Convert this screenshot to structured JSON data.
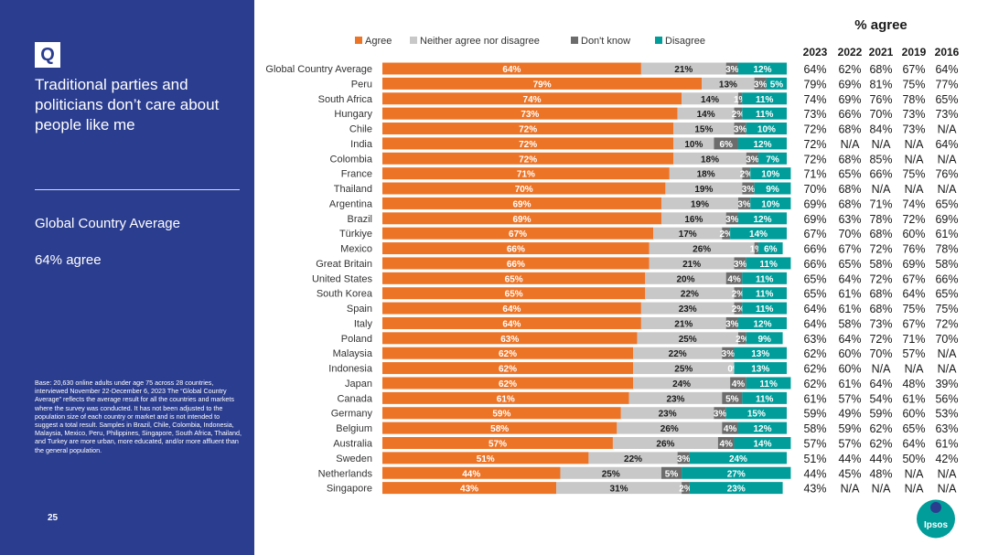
{
  "sidebar": {
    "badge": "Q",
    "question": "Traditional parties and politicians don’t care about people like me",
    "average_label": "Global Country Average",
    "average_value": "64% agree",
    "base_note": "Base: 20,630 online adults under age 75 across 28 countries, interviewed November 22-December 6, 2023\nThe “Global Country Average” reflects the average result for all the countries and markets where the survey was conducted. It has not been adjusted to the population size of each country or market and is not intended to suggest a total result. Samples in Brazil, Chile, Colombia, Indonesia, Malaysia, Mexico, Peru, Philippines, Singapore, South Africa, Thailand, and Turkey are more urban, more educated, and/or more affluent than the general population.",
    "page_number": "25"
  },
  "logo": {
    "text": "Ipsos",
    "color": "#009d9a"
  },
  "colors": {
    "agree": "#ec7427",
    "neither": "#c8c8c8",
    "dontknow": "#6c6c6c",
    "disagree": "#009d9a",
    "sidebar": "#2b3d8f"
  },
  "chart_data": {
    "type": "bar",
    "orientation": "horizontal",
    "stacked": true,
    "xlim": [
      0,
      100
    ],
    "legend_position": "top",
    "categories": [
      "Global Country Average",
      "Peru",
      "South Africa",
      "Hungary",
      "Chile",
      "India",
      "Colombia",
      "France",
      "Thailand",
      "Argentina",
      "Brazil",
      "Türkiye",
      "Mexico",
      "Great Britain",
      "United States",
      "South Korea",
      "Spain",
      "Italy",
      "Poland",
      "Malaysia",
      "Indonesia",
      "Japan",
      "Canada",
      "Germany",
      "Belgium",
      "Australia",
      "Sweden",
      "Netherlands",
      "Singapore"
    ],
    "series": [
      {
        "name": "Agree",
        "key": "agree",
        "values": [
          64,
          79,
          74,
          73,
          72,
          72,
          72,
          71,
          70,
          69,
          69,
          67,
          66,
          66,
          65,
          65,
          64,
          64,
          63,
          62,
          62,
          62,
          61,
          59,
          58,
          57,
          51,
          44,
          43
        ]
      },
      {
        "name": "Neither agree nor disagree",
        "key": "neither",
        "values": [
          21,
          13,
          14,
          14,
          15,
          10,
          18,
          18,
          19,
          19,
          16,
          17,
          26,
          21,
          20,
          22,
          23,
          21,
          25,
          22,
          25,
          24,
          23,
          23,
          26,
          26,
          22,
          25,
          31
        ]
      },
      {
        "name": "Don't know",
        "key": "dontknow",
        "values": [
          3,
          3,
          1,
          2,
          3,
          6,
          3,
          2,
          3,
          3,
          3,
          2,
          1,
          3,
          4,
          2,
          2,
          3,
          2,
          3,
          0,
          4,
          5,
          3,
          4,
          4,
          3,
          5,
          2
        ]
      },
      {
        "name": "Disagree",
        "key": "disagree",
        "values": [
          12,
          5,
          11,
          11,
          10,
          12,
          7,
          10,
          9,
          10,
          12,
          14,
          6,
          11,
          11,
          11,
          11,
          12,
          9,
          13,
          13,
          11,
          11,
          15,
          12,
          14,
          24,
          27,
          23
        ]
      }
    ],
    "trend_table": {
      "title": "% agree",
      "years": [
        "2023",
        "2022",
        "2021",
        "2019",
        "2016"
      ],
      "rows": [
        [
          "64%",
          "62%",
          "68%",
          "67%",
          "64%"
        ],
        [
          "79%",
          "69%",
          "81%",
          "75%",
          "77%"
        ],
        [
          "74%",
          "69%",
          "76%",
          "78%",
          "65%"
        ],
        [
          "73%",
          "66%",
          "70%",
          "73%",
          "73%"
        ],
        [
          "72%",
          "68%",
          "84%",
          "73%",
          "N/A"
        ],
        [
          "72%",
          "N/A",
          "N/A",
          "N/A",
          "64%"
        ],
        [
          "72%",
          "68%",
          "85%",
          "N/A",
          "N/A"
        ],
        [
          "71%",
          "65%",
          "66%",
          "75%",
          "76%"
        ],
        [
          "70%",
          "68%",
          "N/A",
          "N/A",
          "N/A"
        ],
        [
          "69%",
          "68%",
          "71%",
          "74%",
          "65%"
        ],
        [
          "69%",
          "63%",
          "78%",
          "72%",
          "69%"
        ],
        [
          "67%",
          "70%",
          "68%",
          "60%",
          "61%"
        ],
        [
          "66%",
          "67%",
          "72%",
          "76%",
          "78%"
        ],
        [
          "66%",
          "65%",
          "58%",
          "69%",
          "58%"
        ],
        [
          "65%",
          "64%",
          "72%",
          "67%",
          "66%"
        ],
        [
          "65%",
          "61%",
          "68%",
          "64%",
          "65%"
        ],
        [
          "64%",
          "61%",
          "68%",
          "75%",
          "75%"
        ],
        [
          "64%",
          "58%",
          "73%",
          "67%",
          "72%"
        ],
        [
          "63%",
          "64%",
          "72%",
          "71%",
          "70%"
        ],
        [
          "62%",
          "60%",
          "70%",
          "57%",
          "N/A"
        ],
        [
          "62%",
          "60%",
          "N/A",
          "N/A",
          "N/A"
        ],
        [
          "62%",
          "61%",
          "64%",
          "48%",
          "39%"
        ],
        [
          "61%",
          "57%",
          "54%",
          "61%",
          "56%"
        ],
        [
          "59%",
          "49%",
          "59%",
          "60%",
          "53%"
        ],
        [
          "58%",
          "59%",
          "62%",
          "65%",
          "63%"
        ],
        [
          "57%",
          "57%",
          "62%",
          "64%",
          "61%"
        ],
        [
          "51%",
          "44%",
          "44%",
          "50%",
          "42%"
        ],
        [
          "44%",
          "45%",
          "48%",
          "N/A",
          "N/A"
        ],
        [
          "43%",
          "N/A",
          "N/A",
          "N/A",
          "N/A"
        ]
      ]
    }
  }
}
